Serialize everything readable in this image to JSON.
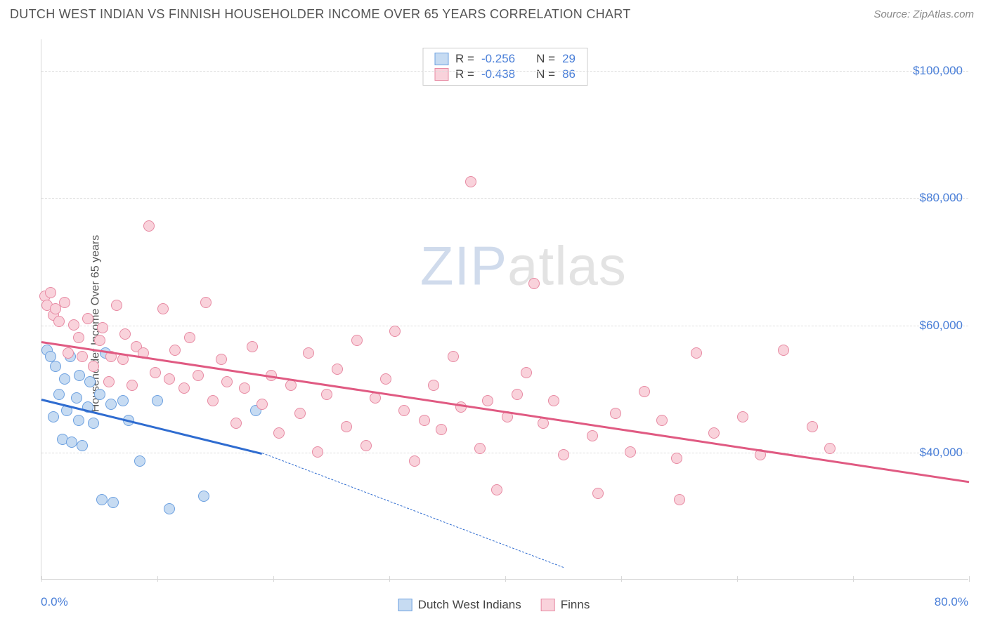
{
  "header": {
    "title": "DUTCH WEST INDIAN VS FINNISH HOUSEHOLDER INCOME OVER 65 YEARS CORRELATION CHART",
    "source": "Source: ZipAtlas.com"
  },
  "chart": {
    "type": "scatter",
    "ylabel": "Householder Income Over 65 years",
    "xlim": [
      0,
      80
    ],
    "ylim": [
      20000,
      105000
    ],
    "y_ticks": [
      40000,
      60000,
      80000,
      100000
    ],
    "y_tick_labels": [
      "$40,000",
      "$60,000",
      "$80,000",
      "$100,000"
    ],
    "x_tick_positions": [
      0,
      10,
      20,
      30,
      40,
      50,
      60,
      70,
      80
    ],
    "x_min_label": "0.0%",
    "x_max_label": "80.0%",
    "grid_color": "#dddddd",
    "axis_color": "#d8d8d8",
    "background_color": "#ffffff",
    "tick_label_color": "#4a7fd8",
    "watermark": {
      "z": "ZIP",
      "rest": "atlas"
    },
    "series": [
      {
        "name": "Dutch West Indians",
        "marker_fill": "#c6dbf2",
        "marker_stroke": "#6ca0e0",
        "line_color": "#2f6cd0",
        "r_label": "R =",
        "r_value": "-0.256",
        "n_label": "N =",
        "n_value": "29",
        "trend": {
          "x1": 0,
          "y1": 48500,
          "x2": 19,
          "y2": 40000,
          "x2_dash": 45,
          "y2_dash": 22000
        },
        "points": [
          [
            0.5,
            56000
          ],
          [
            0.8,
            55000
          ],
          [
            1.0,
            45500
          ],
          [
            1.2,
            53500
          ],
          [
            1.5,
            49000
          ],
          [
            1.8,
            42000
          ],
          [
            2.0,
            51500
          ],
          [
            2.2,
            46500
          ],
          [
            2.5,
            55000
          ],
          [
            2.6,
            41500
          ],
          [
            3.0,
            48500
          ],
          [
            3.2,
            45000
          ],
          [
            3.3,
            52000
          ],
          [
            3.5,
            41000
          ],
          [
            4.0,
            47000
          ],
          [
            4.2,
            51000
          ],
          [
            4.5,
            44500
          ],
          [
            5.0,
            49000
          ],
          [
            5.2,
            32500
          ],
          [
            5.5,
            55500
          ],
          [
            6.0,
            47500
          ],
          [
            6.2,
            32000
          ],
          [
            7.0,
            48000
          ],
          [
            7.5,
            45000
          ],
          [
            8.5,
            38500
          ],
          [
            10.0,
            48000
          ],
          [
            11.0,
            31000
          ],
          [
            14.0,
            33000
          ],
          [
            18.5,
            46500
          ]
        ]
      },
      {
        "name": "Finns",
        "marker_fill": "#f9d2db",
        "marker_stroke": "#e78aa3",
        "line_color": "#e05a82",
        "r_label": "R =",
        "r_value": "-0.438",
        "n_label": "N =",
        "n_value": "86",
        "trend": {
          "x1": 0,
          "y1": 57500,
          "x2": 80,
          "y2": 35500
        },
        "points": [
          [
            0.3,
            64500
          ],
          [
            0.5,
            63000
          ],
          [
            0.8,
            65000
          ],
          [
            1.0,
            61500
          ],
          [
            1.2,
            62500
          ],
          [
            1.5,
            60500
          ],
          [
            2.0,
            63500
          ],
          [
            2.3,
            55500
          ],
          [
            2.8,
            60000
          ],
          [
            3.2,
            58000
          ],
          [
            3.5,
            55000
          ],
          [
            4.0,
            61000
          ],
          [
            4.5,
            53500
          ],
          [
            5.0,
            57500
          ],
          [
            5.3,
            59500
          ],
          [
            5.8,
            51000
          ],
          [
            6.0,
            55000
          ],
          [
            6.5,
            63000
          ],
          [
            7.0,
            54500
          ],
          [
            7.2,
            58500
          ],
          [
            7.8,
            50500
          ],
          [
            8.2,
            56500
          ],
          [
            8.8,
            55500
          ],
          [
            9.3,
            75500
          ],
          [
            9.8,
            52500
          ],
          [
            10.5,
            62500
          ],
          [
            11.0,
            51500
          ],
          [
            11.5,
            56000
          ],
          [
            12.3,
            50000
          ],
          [
            12.8,
            58000
          ],
          [
            13.5,
            52000
          ],
          [
            14.2,
            63500
          ],
          [
            14.8,
            48000
          ],
          [
            15.5,
            54500
          ],
          [
            16.0,
            51000
          ],
          [
            16.8,
            44500
          ],
          [
            17.5,
            50000
          ],
          [
            18.2,
            56500
          ],
          [
            19.0,
            47500
          ],
          [
            19.8,
            52000
          ],
          [
            20.5,
            43000
          ],
          [
            21.5,
            50500
          ],
          [
            22.3,
            46000
          ],
          [
            23.0,
            55500
          ],
          [
            23.8,
            40000
          ],
          [
            24.6,
            49000
          ],
          [
            25.5,
            53000
          ],
          [
            26.3,
            44000
          ],
          [
            27.2,
            57500
          ],
          [
            28.0,
            41000
          ],
          [
            28.8,
            48500
          ],
          [
            29.7,
            51500
          ],
          [
            30.5,
            59000
          ],
          [
            31.3,
            46500
          ],
          [
            32.2,
            38500
          ],
          [
            33.0,
            45000
          ],
          [
            33.8,
            50500
          ],
          [
            34.5,
            43500
          ],
          [
            35.5,
            55000
          ],
          [
            36.2,
            47000
          ],
          [
            37.0,
            82500
          ],
          [
            37.8,
            40500
          ],
          [
            38.5,
            48000
          ],
          [
            39.3,
            34000
          ],
          [
            40.2,
            45500
          ],
          [
            41.0,
            49000
          ],
          [
            41.8,
            52500
          ],
          [
            42.5,
            66500
          ],
          [
            43.3,
            44500
          ],
          [
            44.2,
            48000
          ],
          [
            45.0,
            39500
          ],
          [
            47.5,
            42500
          ],
          [
            48.0,
            33500
          ],
          [
            49.5,
            46000
          ],
          [
            50.8,
            40000
          ],
          [
            52.0,
            49500
          ],
          [
            53.5,
            45000
          ],
          [
            54.8,
            39000
          ],
          [
            55.0,
            32500
          ],
          [
            56.5,
            55500
          ],
          [
            58.0,
            43000
          ],
          [
            60.5,
            45500
          ],
          [
            62.0,
            39500
          ],
          [
            64.0,
            56000
          ],
          [
            66.5,
            44000
          ],
          [
            68.0,
            40500
          ]
        ]
      }
    ],
    "legend_bottom": [
      {
        "label": "Dutch West Indians",
        "fill": "#c6dbf2",
        "stroke": "#6ca0e0"
      },
      {
        "label": "Finns",
        "fill": "#f9d2db",
        "stroke": "#e78aa3"
      }
    ]
  }
}
